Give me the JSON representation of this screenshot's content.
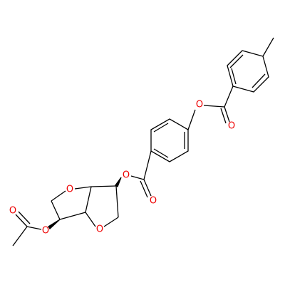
{
  "atoms": [
    {
      "label": "O"
    },
    {
      "label": "O"
    },
    {
      "label": "O"
    },
    {
      "label": "O"
    },
    {
      "label": "O"
    },
    {
      "label": "O"
    },
    {
      "label": "O"
    },
    {
      "label": "O"
    }
  ]
}
